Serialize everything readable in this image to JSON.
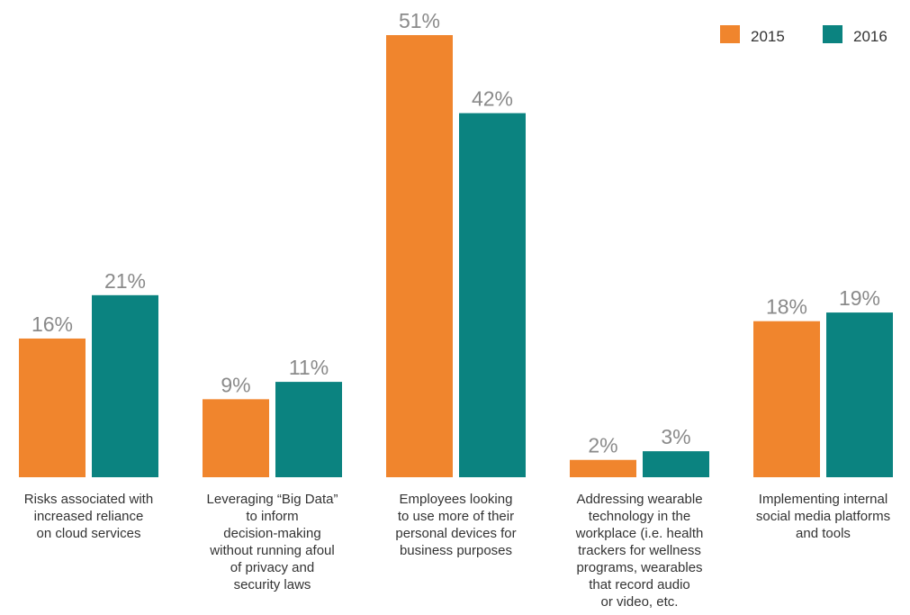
{
  "chart_data": {
    "type": "bar",
    "categories": [
      "Risks associated with increased reliance on cloud services",
      "Leveraging “Big Data” to inform decision-making without running afoul of privacy and security laws",
      "Employees looking to use more of their personal devices for business purposes",
      "Addressing wearable technology in the workplace (i.e. health trackers for wellness programs, wearables that record audio or video, etc.",
      "Implementing internal social media platforms and tools"
    ],
    "category_lines": [
      [
        "Risks associated with",
        "increased reliance",
        "on cloud services"
      ],
      [
        "Leveraging “Big Data”",
        "to inform",
        "decision-making",
        "without running afoul",
        "of privacy and",
        "security laws"
      ],
      [
        "Employees looking",
        "to use more of their",
        "personal devices for",
        "business purposes"
      ],
      [
        "Addressing wearable",
        "technology in the",
        "workplace (i.e. health",
        "trackers for wellness",
        "programs, wearables",
        "that record audio",
        "or video, etc."
      ],
      [
        "Implementing internal",
        "social media platforms",
        "and tools"
      ]
    ],
    "series": [
      {
        "name": "2015",
        "color": "#f0852d",
        "values": [
          16,
          9,
          51,
          2,
          18
        ],
        "labels": [
          "16%",
          "9%",
          "51%",
          "2%",
          "18%"
        ]
      },
      {
        "name": "2016",
        "color": "#0b8380",
        "values": [
          21,
          11,
          42,
          3,
          19
        ],
        "labels": [
          "21%",
          "11%",
          "42%",
          "3%",
          "19%"
        ]
      }
    ],
    "ylim": [
      0,
      51
    ],
    "grid": false,
    "legend": "top-right",
    "value_label_color": "#8a8a8a"
  }
}
